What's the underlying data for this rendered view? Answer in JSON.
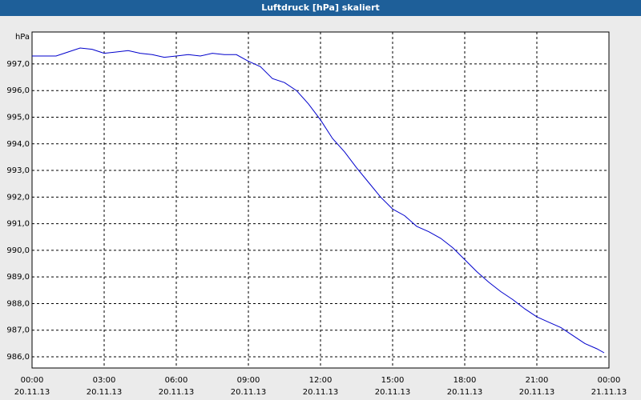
{
  "chart_data": {
    "type": "line",
    "title": "Luftdruck [hPa] skaliert",
    "y_unit": "hPa",
    "x": [
      0,
      0.5,
      1,
      1.5,
      2,
      2.5,
      3,
      3.5,
      4,
      4.5,
      5,
      5.5,
      6,
      6.5,
      7,
      7.5,
      8,
      8.5,
      9,
      9.5,
      10,
      10.5,
      11,
      11.5,
      12,
      12.5,
      13,
      13.5,
      14,
      14.5,
      15,
      15.5,
      16,
      16.5,
      17,
      17.5,
      18,
      18.5,
      19,
      19.5,
      20,
      20.5,
      21,
      21.5,
      22,
      22.5,
      23,
      23.5,
      23.8
    ],
    "series": [
      {
        "name": "Luftdruck",
        "color": "#0000cc",
        "values": [
          997.3,
          997.3,
          997.3,
          997.45,
          997.6,
          997.55,
          997.4,
          997.45,
          997.5,
          997.4,
          997.35,
          997.25,
          997.3,
          997.35,
          997.3,
          997.4,
          997.35,
          997.35,
          997.1,
          996.9,
          996.45,
          996.3,
          996.0,
          995.5,
          994.9,
          994.2,
          993.7,
          993.1,
          992.55,
          992.0,
          991.55,
          991.3,
          990.9,
          990.7,
          990.45,
          990.1,
          989.65,
          989.2,
          988.8,
          988.45,
          988.15,
          987.8,
          987.5,
          987.3,
          987.1,
          986.8,
          986.5,
          986.3,
          986.15
        ]
      }
    ],
    "xlim": [
      0,
      24
    ],
    "xticks": [
      {
        "value": 0,
        "label": "00:00"
      },
      {
        "value": 3,
        "label": "03:00"
      },
      {
        "value": 6,
        "label": "06:00"
      },
      {
        "value": 9,
        "label": "09:00"
      },
      {
        "value": 12,
        "label": "12:00"
      },
      {
        "value": 15,
        "label": "15:00"
      },
      {
        "value": 18,
        "label": "18:00"
      },
      {
        "value": 21,
        "label": "21:00"
      },
      {
        "value": 24,
        "label": "00:00"
      }
    ],
    "xtick_dates": [
      "20.11.13",
      "20.11.13",
      "20.11.13",
      "20.11.13",
      "20.11.13",
      "20.11.13",
      "20.11.13",
      "20.11.13",
      "21.11.13"
    ],
    "ylim": [
      985.58,
      998.2
    ],
    "yticks": [
      {
        "value": 986,
        "label": "986,0"
      },
      {
        "value": 987,
        "label": "987,0"
      },
      {
        "value": 988,
        "label": "988,0"
      },
      {
        "value": 989,
        "label": "989,0"
      },
      {
        "value": 990,
        "label": "990,0"
      },
      {
        "value": 991,
        "label": "991,0"
      },
      {
        "value": 992,
        "label": "992,0"
      },
      {
        "value": 993,
        "label": "993,0"
      },
      {
        "value": 994,
        "label": "994,0"
      },
      {
        "value": 995,
        "label": "995,0"
      },
      {
        "value": 996,
        "label": "996,0"
      },
      {
        "value": 997,
        "label": "997,0"
      }
    ],
    "grid": true
  }
}
